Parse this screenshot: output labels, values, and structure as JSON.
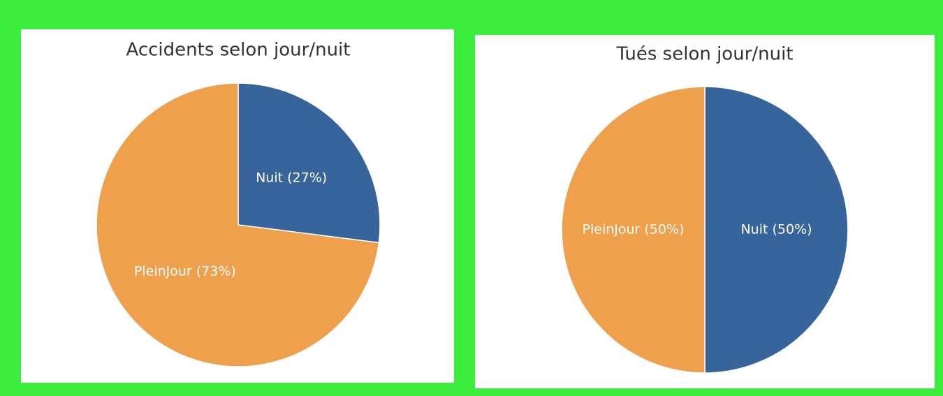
{
  "chart_data": [
    {
      "type": "pie",
      "title": "Accidents selon jour/nuit",
      "categories": [
        "Nuit",
        "PleinJour"
      ],
      "values": [
        27,
        73
      ],
      "value_labels": [
        "Nuit (27%)",
        "PleinJour (73%)"
      ],
      "colors": [
        "#37649b",
        "#eea04c"
      ]
    },
    {
      "type": "pie",
      "title": "Tués selon jour/nuit",
      "categories": [
        "Nuit",
        "PleinJour"
      ],
      "values": [
        50,
        50
      ],
      "value_labels": [
        "Nuit (50%)",
        "PleinJour (50%)"
      ],
      "colors": [
        "#37649b",
        "#eea04c"
      ]
    }
  ]
}
